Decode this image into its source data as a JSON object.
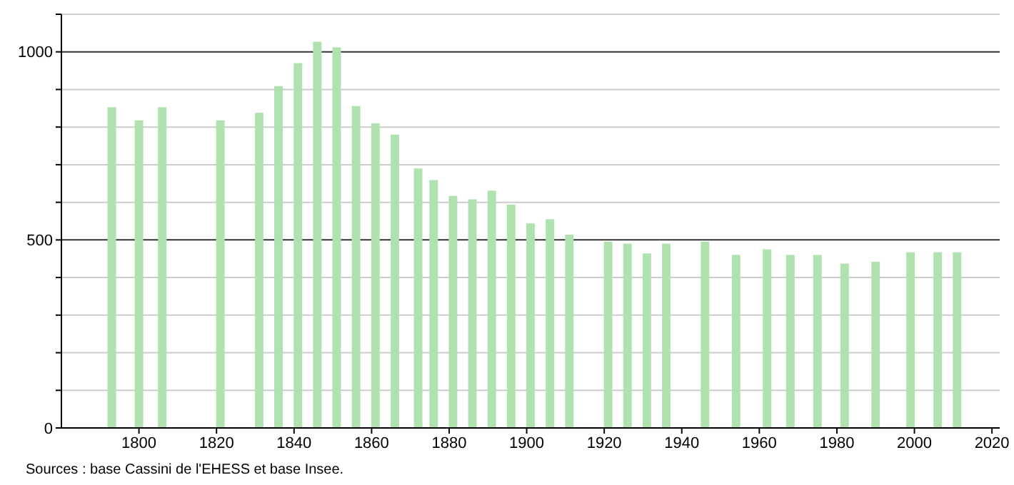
{
  "chart_data": {
    "type": "bar",
    "x": [
      1793,
      1800,
      1806,
      1821,
      1831,
      1836,
      1841,
      1846,
      1851,
      1856,
      1861,
      1866,
      1872,
      1876,
      1881,
      1886,
      1891,
      1896,
      1901,
      1906,
      1911,
      1921,
      1926,
      1931,
      1936,
      1946,
      1954,
      1962,
      1968,
      1975,
      1982,
      1990,
      1999,
      2006,
      2011
    ],
    "values": [
      853,
      818,
      853,
      818,
      838,
      909,
      970,
      1027,
      1012,
      856,
      810,
      780,
      690,
      659,
      617,
      608,
      631,
      594,
      544,
      555,
      514,
      495,
      490,
      464,
      490,
      495,
      460,
      475,
      460,
      460,
      437,
      442,
      467,
      467,
      467
    ],
    "color": "#b0e2b0",
    "xlim": [
      1780,
      2022
    ],
    "xticks": [
      1800,
      1820,
      1840,
      1860,
      1880,
      1900,
      1920,
      1940,
      1960,
      1980,
      2000,
      2020
    ],
    "ylim": [
      0,
      1100
    ],
    "yticks": [
      0,
      {
        "value": 100,
        "label": null
      },
      {
        "value": 200,
        "label": null
      },
      {
        "value": 300,
        "label": null
      },
      {
        "value": 400,
        "label": null
      },
      500,
      {
        "value": 600,
        "label": null
      },
      {
        "value": 700,
        "label": null
      },
      {
        "value": 800,
        "label": null
      },
      {
        "value": 900,
        "label": null
      },
      1000,
      {
        "value": 1100,
        "label": null
      }
    ],
    "grid": true,
    "annotations": [
      "Sources : base Cassini de l'EHESS et base Insee."
    ]
  }
}
